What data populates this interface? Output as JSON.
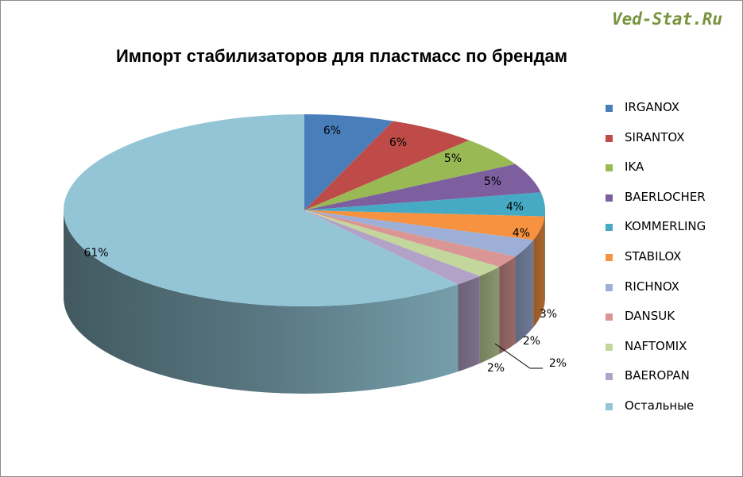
{
  "brand": {
    "text": "Ved-Stat.Ru",
    "color": "#77933c"
  },
  "chart_data": {
    "type": "pie",
    "title": "Импорт стабилизаторов для пластмасс по брендам",
    "legend_position": "right",
    "series": [
      {
        "name": "IRGANOX",
        "value": 6,
        "label": "6%",
        "color": "#4a7ebb"
      },
      {
        "name": "SIRANTOX",
        "value": 6,
        "label": "6%",
        "color": "#be4b48"
      },
      {
        "name": "IKA",
        "value": 5,
        "label": "5%",
        "color": "#98b954"
      },
      {
        "name": "BAERLOCHER",
        "value": 5,
        "label": "5%",
        "color": "#7d5fa0"
      },
      {
        "name": "KOMMERLING",
        "value": 4,
        "label": "4%",
        "color": "#46aac5"
      },
      {
        "name": "STABILOX",
        "value": 4,
        "label": "4%",
        "color": "#f69240"
      },
      {
        "name": "RICHNOX",
        "value": 3,
        "label": "3%",
        "color": "#9dafd6"
      },
      {
        "name": "DANSUK",
        "value": 2,
        "label": "2%",
        "color": "#d99694"
      },
      {
        "name": "NAFTOMIX",
        "value": 2,
        "label": "2%",
        "color": "#c3d69b"
      },
      {
        "name": "BAEROPAN",
        "value": 2,
        "label": "2%",
        "color": "#b3a2c7"
      },
      {
        "name": "Остальные",
        "value": 61,
        "label": "61%",
        "color": "#93c5d6"
      }
    ]
  }
}
